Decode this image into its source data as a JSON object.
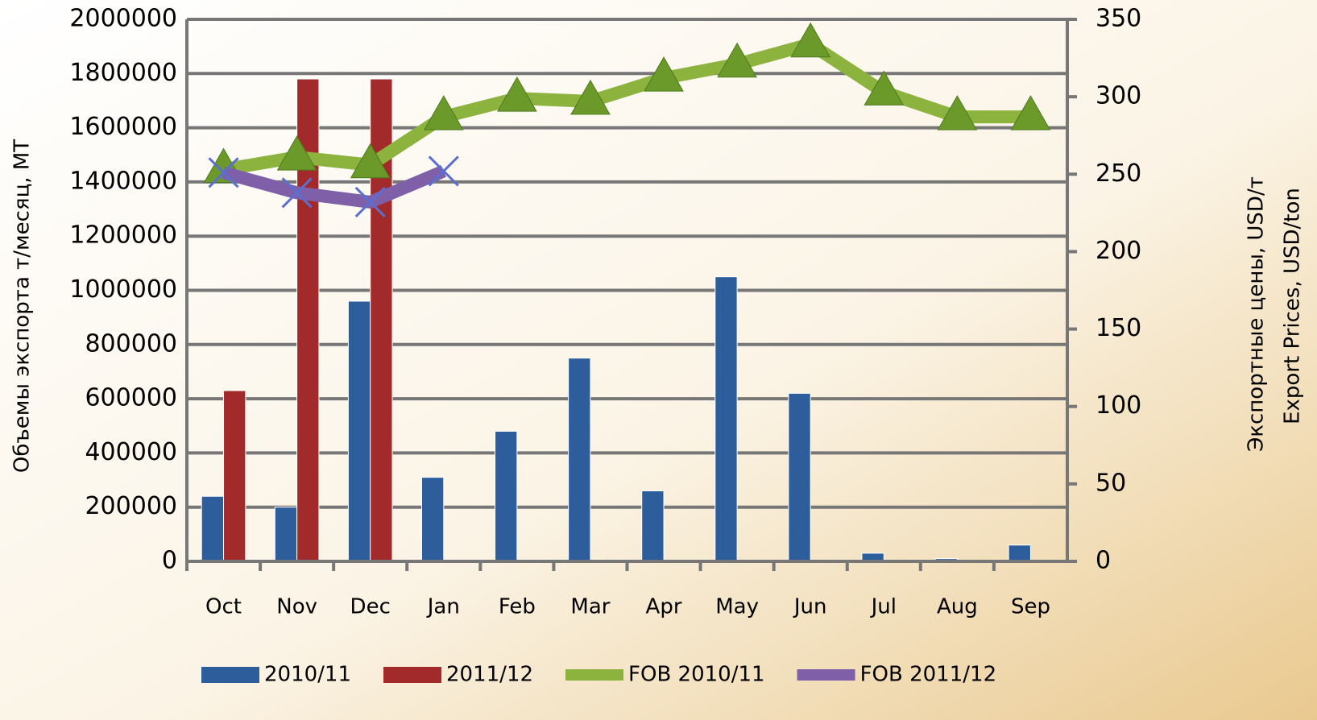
{
  "chart_data": {
    "type": "bar-line",
    "y_label": "Объемы экспорта т/месяц, МТ",
    "y2_labels": [
      "Экспортные цены, USD/т",
      "Export Prices, USD/ton"
    ],
    "categories": [
      "Oct",
      "Nov",
      "Dec",
      "Jan",
      "Feb",
      "Mar",
      "Apr",
      "May",
      "Jun",
      "Jul",
      "Aug",
      "Sep"
    ],
    "series": [
      {
        "name": "2010/11",
        "kind": "bar",
        "color": "#2e5d9c",
        "values": [
          240000,
          200000,
          960000,
          310000,
          480000,
          750000,
          260000,
          1050000,
          620000,
          30000,
          10000,
          60000
        ]
      },
      {
        "name": "2011/12",
        "kind": "bar",
        "color": "#a32a2a",
        "values": [
          630000,
          1780000,
          1780000,
          null,
          null,
          null,
          null,
          null,
          null,
          null,
          null,
          null
        ]
      },
      {
        "name": "FOB 2010/11",
        "kind": "line",
        "axis": "y2",
        "color": "#8db33f",
        "values": [
          253,
          261,
          256,
          287,
          299,
          297,
          312,
          321,
          334,
          303,
          287,
          287
        ]
      },
      {
        "name": "FOB 2011/12",
        "kind": "line",
        "axis": "y2",
        "color": "#7e5fa8",
        "values": [
          251,
          238,
          232,
          252,
          null,
          null,
          null,
          null,
          null,
          null,
          null,
          null
        ]
      }
    ],
    "ylim": [
      0,
      2000000
    ],
    "yticks": [
      0,
      200000,
      400000,
      600000,
      800000,
      1000000,
      1200000,
      1400000,
      1600000,
      1800000,
      2000000
    ],
    "y2lim": [
      0,
      350
    ],
    "y2ticks": [
      0,
      50,
      100,
      150,
      200,
      250,
      300,
      350
    ],
    "grid": true,
    "legend": "bottom"
  }
}
